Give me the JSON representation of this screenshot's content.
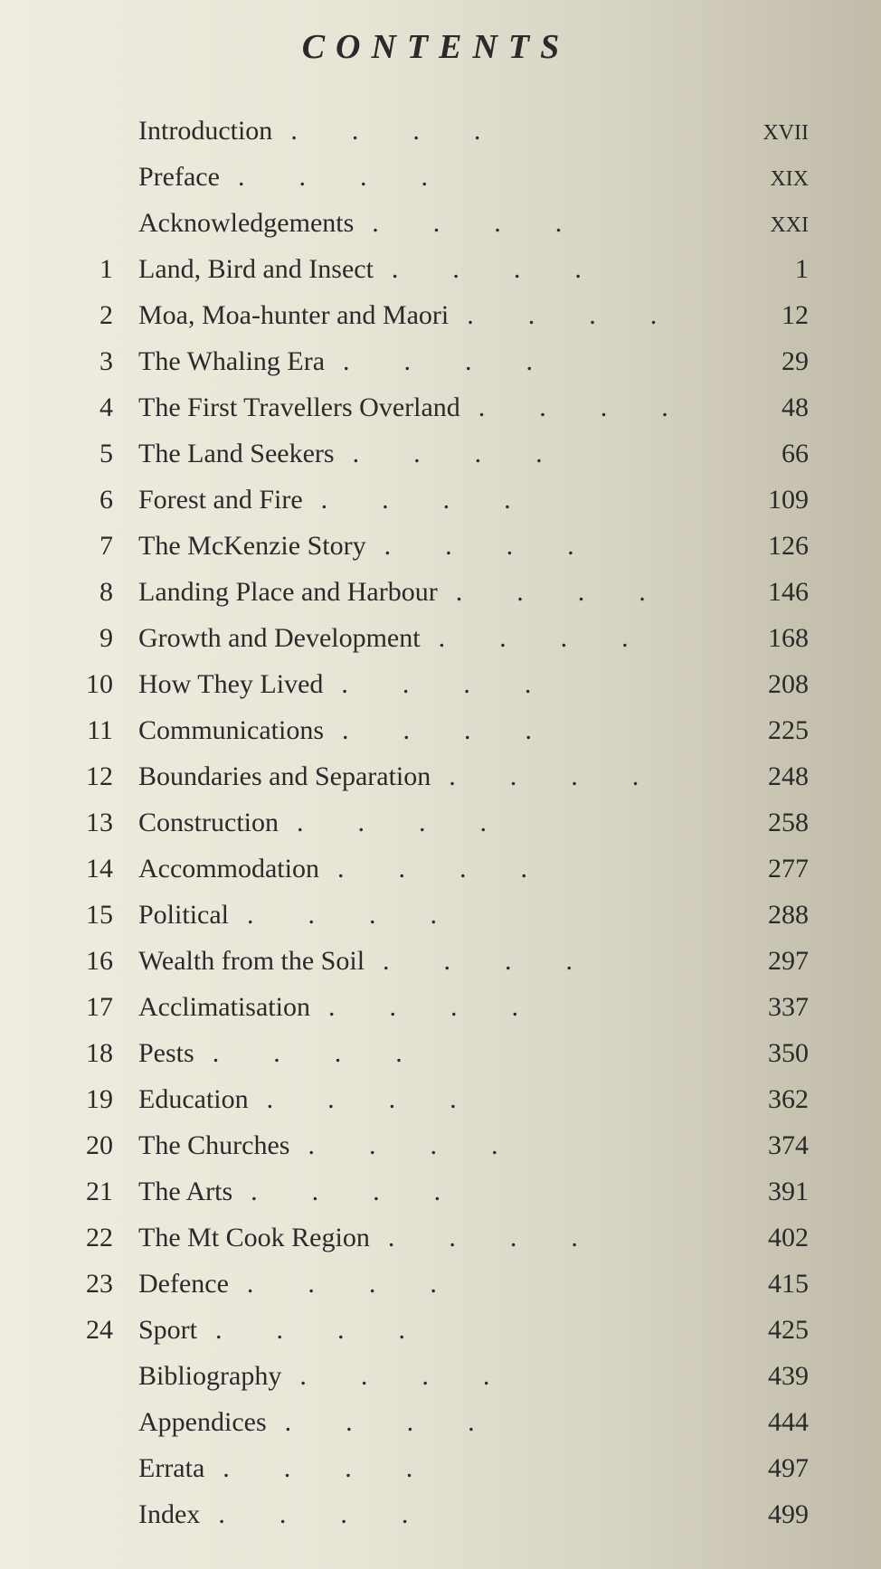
{
  "heading": "CONTENTS",
  "entries": [
    {
      "num": "",
      "title": "Introduction",
      "page": "XVII",
      "roman": true
    },
    {
      "num": "",
      "title": "Preface",
      "page": "XIX",
      "roman": true
    },
    {
      "num": "",
      "title": "Acknowledgements",
      "page": "XXI",
      "roman": true
    },
    {
      "num": "1",
      "title": "Land, Bird and Insect",
      "page": "1",
      "roman": false
    },
    {
      "num": "2",
      "title": "Moa, Moa-hunter and Maori",
      "page": "12",
      "roman": false
    },
    {
      "num": "3",
      "title": "The Whaling Era",
      "page": "29",
      "roman": false
    },
    {
      "num": "4",
      "title": "The First Travellers Overland",
      "page": "48",
      "roman": false
    },
    {
      "num": "5",
      "title": "The Land Seekers",
      "page": "66",
      "roman": false
    },
    {
      "num": "6",
      "title": "Forest and Fire",
      "page": "109",
      "roman": false
    },
    {
      "num": "7",
      "title": "The McKenzie Story",
      "page": "126",
      "roman": false
    },
    {
      "num": "8",
      "title": "Landing Place and Harbour",
      "page": "146",
      "roman": false
    },
    {
      "num": "9",
      "title": "Growth and Development",
      "page": "168",
      "roman": false
    },
    {
      "num": "10",
      "title": "How They Lived",
      "page": "208",
      "roman": false
    },
    {
      "num": "11",
      "title": "Communications",
      "page": "225",
      "roman": false
    },
    {
      "num": "12",
      "title": "Boundaries and Separation",
      "page": "248",
      "roman": false
    },
    {
      "num": "13",
      "title": "Construction",
      "page": "258",
      "roman": false
    },
    {
      "num": "14",
      "title": "Accommodation",
      "page": "277",
      "roman": false
    },
    {
      "num": "15",
      "title": "Political",
      "page": "288",
      "roman": false
    },
    {
      "num": "16",
      "title": "Wealth from the Soil",
      "page": "297",
      "roman": false
    },
    {
      "num": "17",
      "title": "Acclimatisation",
      "page": "337",
      "roman": false
    },
    {
      "num": "18",
      "title": "Pests",
      "page": "350",
      "roman": false
    },
    {
      "num": "19",
      "title": "Education",
      "page": "362",
      "roman": false
    },
    {
      "num": "20",
      "title": "The Churches",
      "page": "374",
      "roman": false
    },
    {
      "num": "21",
      "title": "The Arts",
      "page": "391",
      "roman": false
    },
    {
      "num": "22",
      "title": "The Mt Cook Region",
      "page": "402",
      "roman": false
    },
    {
      "num": "23",
      "title": "Defence",
      "page": "415",
      "roman": false
    },
    {
      "num": "24",
      "title": "Sport",
      "page": "425",
      "roman": false
    },
    {
      "num": "",
      "title": "Bibliography",
      "page": "439",
      "roman": false
    },
    {
      "num": "",
      "title": "Appendices",
      "page": "444",
      "roman": false
    },
    {
      "num": "",
      "title": "Errata",
      "page": "497",
      "roman": false
    },
    {
      "num": "",
      "title": "Index",
      "page": "499",
      "roman": false
    }
  ],
  "style": {
    "background_gradient": [
      "#f0ede0",
      "#e8e4d6",
      "#d8d4c4",
      "#c0bba8"
    ],
    "text_color": "#2a2a2a",
    "title_fontsize": 38,
    "title_letterspacing": 12,
    "row_fontsize": 30,
    "font_family": "Times New Roman"
  }
}
